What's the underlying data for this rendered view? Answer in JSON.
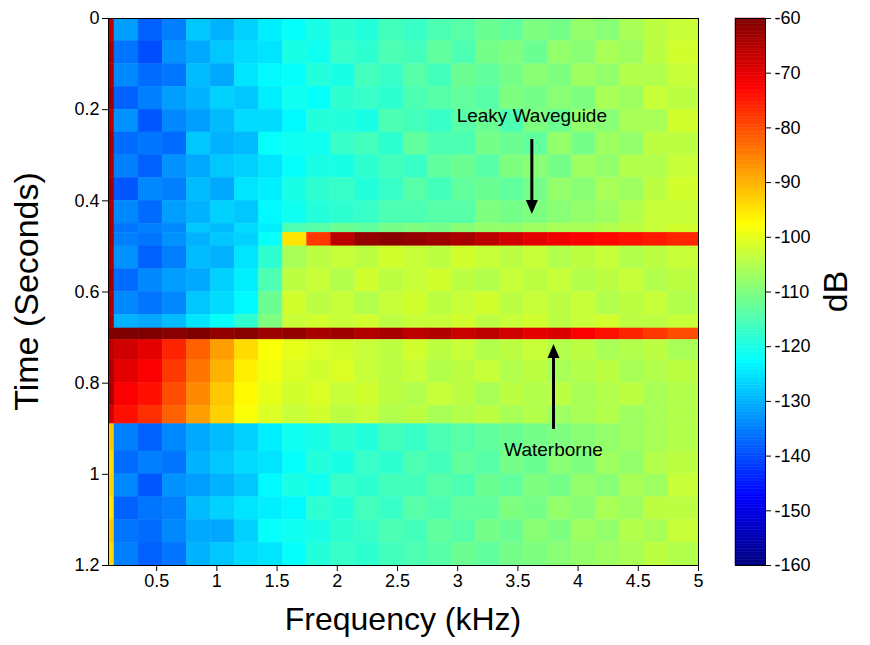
{
  "chart_data": {
    "type": "heatmap",
    "x_label": "Frequency (kHz)",
    "y_label": "Time (Seconds)",
    "xlim": [
      0.1,
      5
    ],
    "xticks": [
      0.5,
      1,
      1.5,
      2,
      2.5,
      3,
      3.5,
      4,
      4.5,
      5
    ],
    "ylim": [
      0,
      1.2
    ],
    "yticks": [
      0,
      0.2,
      0.4,
      0.6,
      0.8,
      1,
      1.2
    ],
    "x_edges": [
      0.1,
      0.15,
      0.35,
      0.55,
      0.75,
      0.95,
      1.15,
      1.35,
      1.55,
      1.75,
      1.95,
      2.15,
      2.35,
      2.55,
      2.75,
      2.95,
      3.15,
      3.35,
      3.55,
      3.75,
      3.95,
      4.15,
      4.35,
      4.55,
      4.75,
      5
    ],
    "y_edges": [
      0,
      0.05,
      0.1,
      0.15,
      0.2,
      0.25,
      0.3,
      0.35,
      0.4,
      0.45,
      0.47,
      0.5,
      0.55,
      0.6,
      0.65,
      0.68,
      0.705,
      0.75,
      0.8,
      0.85,
      0.89,
      0.95,
      1,
      1.05,
      1.1,
      1.15,
      1.2
    ],
    "cells": [
      [
        -66,
        -132,
        -138,
        -135,
        -128,
        -130,
        -127,
        -124,
        -122,
        -120,
        -118,
        -119,
        -116,
        -117,
        -115,
        -114,
        -112,
        -113,
        -110,
        -111,
        -108,
        -109,
        -106,
        -104,
        -103
      ],
      [
        -64,
        -136,
        -140,
        -133,
        -131,
        -128,
        -126,
        -125,
        -120,
        -121,
        -117,
        -118,
        -115,
        -116,
        -113,
        -115,
        -111,
        -110,
        -112,
        -108,
        -109,
        -106,
        -107,
        -104,
        -102
      ],
      [
        -65,
        -134,
        -137,
        -136,
        -129,
        -131,
        -125,
        -123,
        -122,
        -119,
        -120,
        -116,
        -117,
        -114,
        -116,
        -112,
        -113,
        -111,
        -109,
        -110,
        -107,
        -108,
        -105,
        -105,
        -103
      ],
      [
        -63,
        -138,
        -135,
        -132,
        -130,
        -127,
        -128,
        -124,
        -121,
        -122,
        -118,
        -117,
        -118,
        -115,
        -114,
        -113,
        -114,
        -110,
        -111,
        -109,
        -110,
        -106,
        -107,
        -103,
        -104
      ],
      [
        -66,
        -133,
        -139,
        -134,
        -132,
        -129,
        -126,
        -126,
        -123,
        -119,
        -119,
        -120,
        -115,
        -116,
        -117,
        -114,
        -112,
        -115,
        -110,
        -112,
        -108,
        -109,
        -106,
        -106,
        -102
      ],
      [
        -64,
        -137,
        -136,
        -137,
        -128,
        -130,
        -129,
        -122,
        -121,
        -121,
        -117,
        -116,
        -118,
        -113,
        -115,
        -115,
        -111,
        -112,
        -113,
        -108,
        -111,
        -107,
        -108,
        -104,
        -104
      ],
      [
        -65,
        -135,
        -138,
        -133,
        -131,
        -128,
        -127,
        -125,
        -122,
        -120,
        -120,
        -118,
        -116,
        -117,
        -113,
        -112,
        -114,
        -110,
        -109,
        -111,
        -107,
        -108,
        -105,
        -105,
        -103
      ],
      [
        -63,
        -139,
        -134,
        -135,
        -129,
        -131,
        -125,
        -124,
        -120,
        -118,
        -117,
        -119,
        -117,
        -114,
        -116,
        -113,
        -112,
        -113,
        -111,
        -108,
        -109,
        -106,
        -107,
        -104,
        -102
      ],
      [
        -65,
        -134,
        -137,
        -132,
        -130,
        -127,
        -128,
        -123,
        -121,
        -119,
        -118,
        -117,
        -115,
        -115,
        -114,
        -114,
        -110,
        -111,
        -110,
        -109,
        -108,
        -107,
        -105,
        -103,
        -103
      ],
      [
        -64,
        -136,
        -135,
        -134,
        -128,
        -129,
        -126,
        -124,
        -115,
        -114,
        -112,
        -113,
        -111,
        -110,
        -111,
        -109,
        -108,
        -108,
        -107,
        -106,
        -106,
        -105,
        -104,
        -103,
        -102
      ],
      [
        -64,
        -135,
        -136,
        -133,
        -130,
        -128,
        -127,
        -122,
        -95,
        -78,
        -66,
        -62,
        -61,
        -62,
        -63,
        -64,
        -66,
        -68,
        -70,
        -71,
        -72,
        -73,
        -74,
        -75,
        -76
      ],
      [
        -65,
        -133,
        -138,
        -135,
        -129,
        -130,
        -125,
        -118,
        -106,
        -104,
        -103,
        -104,
        -102,
        -103,
        -104,
        -102,
        -103,
        -104,
        -103,
        -105,
        -104,
        -103,
        -105,
        -104,
        -103
      ],
      [
        -63,
        -137,
        -134,
        -132,
        -131,
        -127,
        -124,
        -115,
        -104,
        -103,
        -105,
        -102,
        -104,
        -103,
        -102,
        -104,
        -105,
        -103,
        -104,
        -103,
        -105,
        -104,
        -103,
        -105,
        -104
      ],
      [
        -65,
        -134,
        -136,
        -134,
        -128,
        -126,
        -123,
        -112,
        -102,
        -104,
        -103,
        -105,
        -103,
        -102,
        -104,
        -103,
        -102,
        -104,
        -103,
        -104,
        -103,
        -105,
        -104,
        -103,
        -105
      ],
      [
        -64,
        -130,
        -131,
        -129,
        -125,
        -122,
        -118,
        -110,
        -103,
        -102,
        -103,
        -102,
        -104,
        -103,
        -103,
        -102,
        -104,
        -103,
        -102,
        -104,
        -103,
        -102,
        -104,
        -104,
        -103
      ],
      [
        -60,
        -60,
        -60,
        -61,
        -60,
        -62,
        -61,
        -63,
        -62,
        -64,
        -63,
        -65,
        -64,
        -66,
        -65,
        -67,
        -66,
        -68,
        -70,
        -69,
        -72,
        -74,
        -76,
        -78,
        -80
      ],
      [
        -66,
        -68,
        -70,
        -76,
        -82,
        -88,
        -94,
        -98,
        -100,
        -101,
        -102,
        -103,
        -104,
        -102,
        -104,
        -103,
        -105,
        -104,
        -103,
        -105,
        -104,
        -106,
        -105,
        -104,
        -106
      ],
      [
        -65,
        -70,
        -72,
        -78,
        -84,
        -90,
        -96,
        -99,
        -101,
        -102,
        -101,
        -103,
        -104,
        -103,
        -105,
        -104,
        -103,
        -105,
        -104,
        -106,
        -105,
        -104,
        -106,
        -105,
        -104
      ],
      [
        -64,
        -72,
        -74,
        -80,
        -86,
        -92,
        -97,
        -100,
        -102,
        -101,
        -103,
        -102,
        -104,
        -105,
        -103,
        -104,
        -106,
        -104,
        -105,
        -104,
        -106,
        -105,
        -104,
        -106,
        -105
      ],
      [
        -68,
        -74,
        -77,
        -82,
        -88,
        -93,
        -98,
        -101,
        -103,
        -102,
        -104,
        -103,
        -105,
        -104,
        -106,
        -105,
        -104,
        -106,
        -105,
        -107,
        -106,
        -105,
        -107,
        -106,
        -105
      ],
      [
        -92,
        -135,
        -138,
        -134,
        -131,
        -129,
        -127,
        -124,
        -121,
        -120,
        -118,
        -119,
        -116,
        -117,
        -115,
        -114,
        -113,
        -112,
        -111,
        -110,
        -109,
        -108,
        -107,
        -106,
        -105
      ],
      [
        -94,
        -137,
        -135,
        -136,
        -130,
        -128,
        -126,
        -125,
        -122,
        -119,
        -120,
        -117,
        -118,
        -115,
        -116,
        -113,
        -114,
        -111,
        -112,
        -109,
        -110,
        -107,
        -108,
        -105,
        -104
      ],
      [
        -93,
        -134,
        -139,
        -133,
        -132,
        -130,
        -128,
        -123,
        -120,
        -121,
        -117,
        -118,
        -116,
        -116,
        -114,
        -115,
        -112,
        -113,
        -110,
        -111,
        -108,
        -109,
        -106,
        -107,
        -103
      ],
      [
        -95,
        -138,
        -136,
        -135,
        -129,
        -127,
        -125,
        -124,
        -123,
        -118,
        -119,
        -116,
        -117,
        -114,
        -115,
        -113,
        -113,
        -110,
        -111,
        -108,
        -109,
        -106,
        -107,
        -104,
        -104
      ],
      [
        -92,
        -136,
        -137,
        -134,
        -131,
        -131,
        -127,
        -122,
        -121,
        -120,
        -118,
        -117,
        -115,
        -116,
        -113,
        -114,
        -111,
        -112,
        -109,
        -110,
        -107,
        -108,
        -105,
        -106,
        -103
      ],
      [
        -94,
        -135,
        -138,
        -136,
        -130,
        -128,
        -126,
        -125,
        -122,
        -119,
        -117,
        -118,
        -116,
        -115,
        -114,
        -112,
        -113,
        -111,
        -110,
        -109,
        -108,
        -107,
        -106,
        -104,
        -105
      ]
    ],
    "colorbar": {
      "label": "dB",
      "lim": [
        -160,
        -60
      ],
      "ticks": [
        -160,
        -150,
        -140,
        -130,
        -120,
        -110,
        -100,
        -90,
        -80,
        -70,
        -60
      ]
    },
    "annotations": [
      {
        "text": "Leaky Waveguide",
        "x": 3.62,
        "y": 0.43
      },
      {
        "text": "Waterborne",
        "x": 3.8,
        "y": 0.715
      }
    ]
  }
}
